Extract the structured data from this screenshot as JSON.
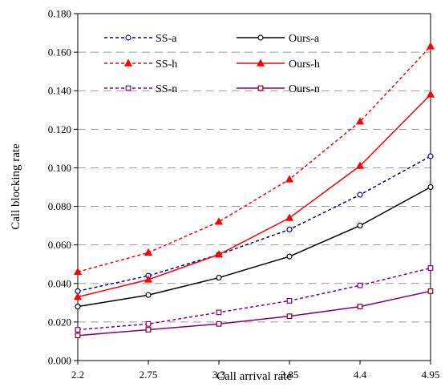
{
  "chart_data": {
    "type": "line",
    "title": "",
    "xlabel": "Call arrival rate",
    "ylabel": "Call blocking rate",
    "x": [
      2.2,
      2.75,
      3.3,
      3.85,
      4.4,
      4.95
    ],
    "x_tick_labels": [
      "2.2",
      "2.75",
      "3.3",
      "3.85",
      "4.4",
      "4.95"
    ],
    "ylim": [
      0,
      0.18
    ],
    "y_ticks": [
      0,
      0.02,
      0.04,
      0.06,
      0.08,
      0.1,
      0.12,
      0.14,
      0.16,
      0.18
    ],
    "y_tick_labels": [
      "0.000",
      "0.020",
      "0.040",
      "0.060",
      "0.080",
      "0.100",
      "0.120",
      "0.140",
      "0.160",
      "0.180"
    ],
    "grid": "horizontal dashed",
    "legend_placement": "top-left, inside plot",
    "series": [
      {
        "name": "SS-a",
        "values": [
          0.036,
          0.044,
          0.055,
          0.068,
          0.086,
          0.106
        ],
        "color": "#00008b",
        "dash": "dashed",
        "marker": "circle-open"
      },
      {
        "name": "Ours-a",
        "values": [
          0.028,
          0.034,
          0.043,
          0.054,
          0.07,
          0.09
        ],
        "color": "#000000",
        "dash": "solid",
        "marker": "circle-open"
      },
      {
        "name": "SS-h",
        "values": [
          0.046,
          0.056,
          0.072,
          0.094,
          0.124,
          0.163
        ],
        "color": "#ff0000",
        "dash": "dashed",
        "marker": "triangle-filled"
      },
      {
        "name": "Ours-h",
        "values": [
          0.033,
          0.042,
          0.055,
          0.074,
          0.101,
          0.138
        ],
        "color": "#ff0000",
        "dash": "solid",
        "marker": "triangle-filled"
      },
      {
        "name": "SS-n",
        "values": [
          0.016,
          0.019,
          0.025,
          0.031,
          0.039,
          0.048
        ],
        "color": "#800080",
        "dash": "dashed",
        "marker": "square-open"
      },
      {
        "name": "Ours-n",
        "values": [
          0.013,
          0.016,
          0.019,
          0.023,
          0.028,
          0.036
        ],
        "color": "#800080",
        "dash": "solid",
        "marker": "square-open",
        "marker_color": "#8b0000"
      }
    ]
  }
}
